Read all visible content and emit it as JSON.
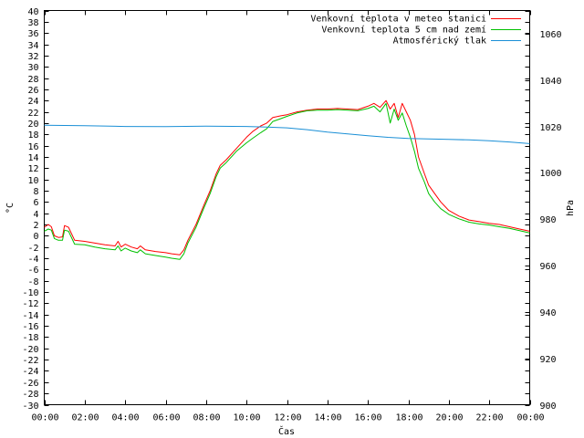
{
  "chart_data": {
    "type": "line",
    "xlabel": "Čas",
    "ylabel_left": "°C",
    "ylabel_right": "hPa",
    "x_ticks": [
      "00:00",
      "02:00",
      "04:00",
      "06:00",
      "08:00",
      "10:00",
      "12:00",
      "14:00",
      "16:00",
      "18:00",
      "20:00",
      "22:00",
      "00:00"
    ],
    "xlim_hours": [
      0,
      24
    ],
    "ylim_left": [
      -30,
      40
    ],
    "ylim_right": [
      900,
      1070
    ],
    "left_ticks": [
      40,
      38,
      36,
      34,
      32,
      30,
      28,
      26,
      24,
      22,
      20,
      18,
      16,
      14,
      12,
      10,
      8,
      6,
      4,
      2,
      0,
      -2,
      -4,
      -6,
      -8,
      -10,
      -12,
      -14,
      -16,
      -18,
      -20,
      -22,
      -24,
      -26,
      -28,
      -30
    ],
    "right_ticks": [
      1060,
      1040,
      1020,
      1000,
      980,
      960,
      940,
      920,
      900
    ],
    "grid": false,
    "legend_position": "top-right",
    "series": [
      {
        "name": "Venkovní teplota v meteo stanici",
        "color": "#ff0000",
        "axis": "left",
        "x": [
          0,
          0.2,
          0.35,
          0.5,
          0.7,
          0.9,
          1.0,
          1.2,
          1.5,
          2,
          2.5,
          3,
          3.5,
          3.65,
          3.8,
          4,
          4.3,
          4.6,
          4.75,
          5,
          5.5,
          6,
          6.3,
          6.7,
          6.9,
          7.1,
          7.5,
          7.9,
          8.2,
          8.5,
          8.7,
          9,
          9.5,
          10,
          10.3,
          10.7,
          11,
          11.3,
          11.7,
          12,
          12.5,
          13,
          13.5,
          14,
          14.5,
          15,
          15.5,
          16,
          16.3,
          16.6,
          16.9,
          17.1,
          17.3,
          17.5,
          17.7,
          17.9,
          18.1,
          18.3,
          18.5,
          18.8,
          19,
          19.3,
          19.6,
          20,
          20.5,
          21,
          21.5,
          22,
          22.5,
          23,
          23.5,
          24
        ],
        "y": [
          1.5,
          2,
          1.6,
          0,
          -0.3,
          -0.2,
          1.8,
          1.5,
          -0.8,
          -1,
          -1.3,
          -1.6,
          -1.8,
          -1,
          -2,
          -1.5,
          -2,
          -2.3,
          -1.8,
          -2.5,
          -2.8,
          -3,
          -3.2,
          -3.4,
          -2.5,
          -0.8,
          2,
          5.5,
          8,
          11,
          12.5,
          13.5,
          15.5,
          17.5,
          18.5,
          19.5,
          20,
          21,
          21.3,
          21.5,
          22,
          22.3,
          22.5,
          22.5,
          22.6,
          22.5,
          22.4,
          23,
          23.5,
          22.8,
          24,
          22.5,
          23.5,
          21,
          23.5,
          22,
          20.5,
          18,
          14,
          11,
          9,
          7.5,
          6,
          4.5,
          3.5,
          2.8,
          2.5,
          2.2,
          2,
          1.6,
          1.2,
          0.8
        ]
      },
      {
        "name": "Venkovní teplota 5 cm nad zemí",
        "color": "#00c000",
        "axis": "left",
        "x": [
          0,
          0.2,
          0.35,
          0.5,
          0.7,
          0.9,
          1.0,
          1.2,
          1.5,
          2,
          2.5,
          3,
          3.5,
          3.65,
          3.8,
          4,
          4.3,
          4.6,
          4.75,
          5,
          5.5,
          6,
          6.3,
          6.7,
          6.9,
          7.1,
          7.5,
          7.9,
          8.2,
          8.5,
          8.7,
          9,
          9.5,
          10,
          10.3,
          10.7,
          11,
          11.3,
          11.7,
          12,
          12.5,
          13,
          13.5,
          14,
          14.5,
          15,
          15.5,
          16,
          16.3,
          16.6,
          16.9,
          17.1,
          17.3,
          17.5,
          17.7,
          17.9,
          18.1,
          18.3,
          18.5,
          18.8,
          19,
          19.3,
          19.6,
          20,
          20.5,
          21,
          21.5,
          22,
          22.5,
          23,
          23.5,
          24
        ],
        "y": [
          0.8,
          1.2,
          1.0,
          -0.5,
          -0.8,
          -0.8,
          1.0,
          0.8,
          -1.5,
          -1.6,
          -2,
          -2.3,
          -2.5,
          -1.8,
          -2.7,
          -2.2,
          -2.7,
          -3,
          -2.5,
          -3.2,
          -3.5,
          -3.8,
          -4,
          -4.2,
          -3.2,
          -1.3,
          1.5,
          5,
          7.5,
          10.5,
          12,
          13,
          15,
          16.5,
          17.3,
          18.3,
          19,
          20.3,
          20.8,
          21.2,
          21.8,
          22.2,
          22.3,
          22.3,
          22.4,
          22.3,
          22.2,
          22.6,
          23,
          22,
          23.5,
          20,
          22.5,
          20.5,
          21.8,
          19.5,
          17.5,
          15,
          12,
          9.5,
          7.5,
          6,
          4.8,
          3.8,
          3,
          2.4,
          2.1,
          1.9,
          1.6,
          1.3,
          0.9,
          0.5
        ]
      },
      {
        "name": "Atmosférický tlak",
        "color": "#1a8fd6",
        "axis": "right",
        "x": [
          0,
          2,
          4,
          6,
          8,
          10,
          11,
          12,
          13,
          14,
          15,
          16,
          17,
          18,
          19,
          20,
          21,
          22,
          23,
          24
        ],
        "y": [
          1020.5,
          1020.3,
          1020,
          1019.9,
          1020.1,
          1020,
          1019.7,
          1019.4,
          1018.6,
          1017.6,
          1016.8,
          1016,
          1015.3,
          1014.8,
          1014.6,
          1014.4,
          1014.2,
          1013.8,
          1013.3,
          1012.6
        ]
      }
    ]
  }
}
